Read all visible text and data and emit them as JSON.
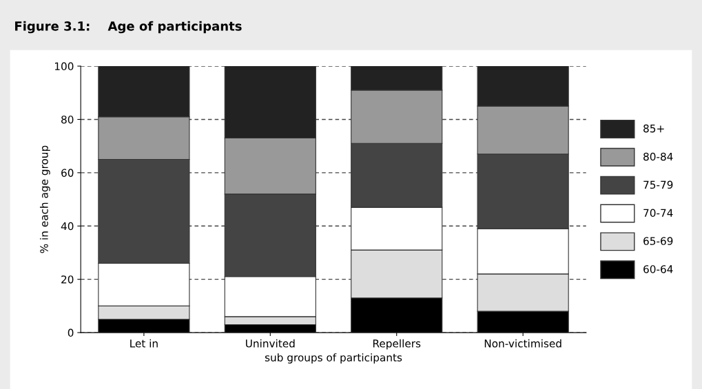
{
  "chart_data": {
    "type": "bar",
    "title": "Figure 3.1:    Age of participants",
    "xlabel": "sub groups of participants",
    "ylabel": "% in each age group",
    "categories": [
      "Let in",
      "Uninvited",
      "Repellers",
      "Non-victimised"
    ],
    "stacked": true,
    "series": [
      {
        "name": "60-64",
        "color": "#000000",
        "values": [
          5,
          3,
          13,
          8
        ]
      },
      {
        "name": "65-69",
        "color": "#dddddd",
        "values": [
          5,
          3,
          18,
          14
        ]
      },
      {
        "name": "70-74",
        "color": "#ffffff",
        "values": [
          16,
          15,
          16,
          17
        ]
      },
      {
        "name": "75-79",
        "color": "#444444",
        "values": [
          39,
          31,
          24,
          28
        ]
      },
      {
        "name": "80-84",
        "color": "#999999",
        "values": [
          16,
          21,
          20,
          18
        ]
      },
      {
        "name": "85+",
        "color": "#222222",
        "values": [
          19,
          27,
          9,
          15
        ]
      }
    ],
    "ylim": [
      0,
      100
    ],
    "yticks": [
      0,
      20,
      40,
      60,
      80,
      100
    ],
    "grid": "y",
    "legend": "right"
  }
}
